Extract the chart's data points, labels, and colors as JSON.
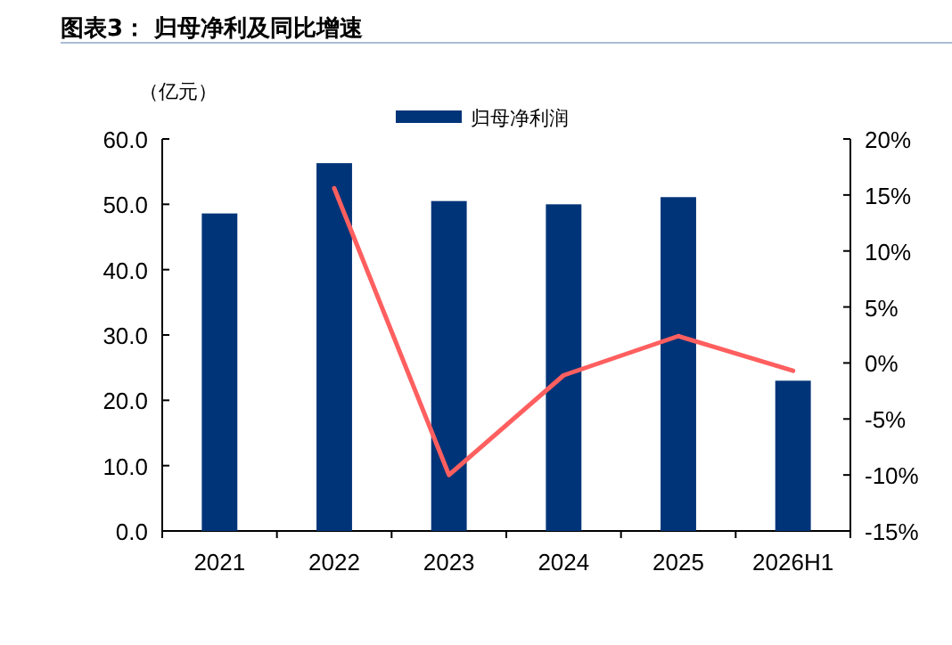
{
  "chart_data": {
    "type": "bar",
    "title": "图表3：  归母净利及同比增速",
    "ylabel": "（亿元）",
    "categories": [
      "2021",
      "2022",
      "2023",
      "2024",
      "2025",
      "2026H1"
    ],
    "series": [
      {
        "name": "归母净利润",
        "color": "#003478",
        "values": [
          48.6,
          56.3,
          50.5,
          50.0,
          51.1,
          23.0
        ]
      },
      {
        "type": "line",
        "axis": "y2",
        "color": "#ff5f5f",
        "values": [
          null,
          15.6,
          -10.0,
          -1.1,
          2.4,
          -0.7
        ]
      }
    ],
    "ylim": [
      0,
      60
    ],
    "yticks": [
      {
        "value": 0,
        "label": "0.0"
      },
      {
        "value": 10,
        "label": "10.0"
      },
      {
        "value": 20,
        "label": "20.0"
      },
      {
        "value": 30,
        "label": "30.0"
      },
      {
        "value": 40,
        "label": "40.0"
      },
      {
        "value": 50,
        "label": "50.0"
      },
      {
        "value": 60,
        "label": "60.0"
      }
    ],
    "y2lim": [
      -15,
      20
    ],
    "y2ticks": [
      {
        "value": -15,
        "label": "-15%"
      },
      {
        "value": -10,
        "label": "-10%"
      },
      {
        "value": -5,
        "label": "-5%"
      },
      {
        "value": 0,
        "label": "0%"
      },
      {
        "value": 5,
        "label": "5%"
      },
      {
        "value": 10,
        "label": "10%"
      },
      {
        "value": 15,
        "label": "15%"
      },
      {
        "value": 20,
        "label": "20%"
      }
    ],
    "legend": "top",
    "grid": false
  }
}
